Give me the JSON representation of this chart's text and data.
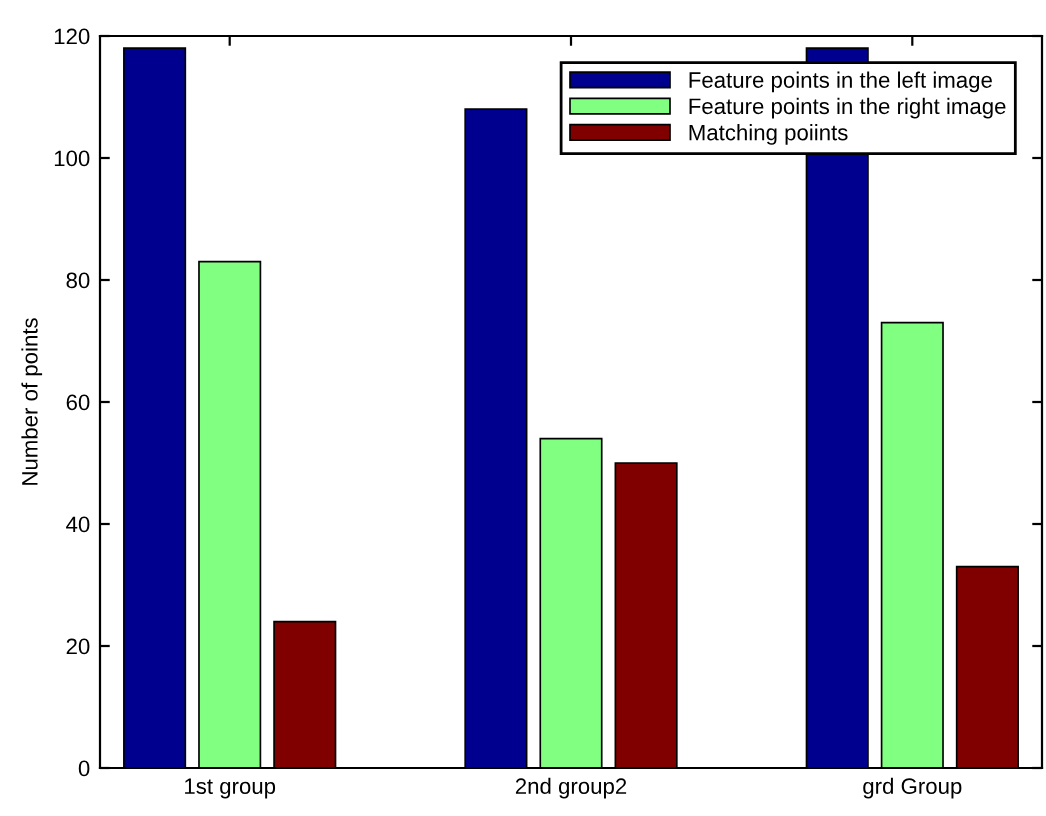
{
  "chart_data": {
    "type": "bar",
    "ylabel": "Number of points",
    "categories": [
      "1st group",
      "2nd group2",
      "grd Group"
    ],
    "series": [
      {
        "name": "Feature points in the left image",
        "color": "#00008f",
        "values": [
          118,
          108,
          118
        ]
      },
      {
        "name": "Feature points in the right image",
        "color": "#80ff80",
        "values": [
          83,
          54,
          73
        ]
      },
      {
        "name": "Matching poiints",
        "color": "#800000",
        "values": [
          24,
          50,
          33
        ]
      }
    ],
    "ylim": [
      0,
      120
    ],
    "yticks": [
      0,
      20,
      40,
      60,
      80,
      100,
      120
    ],
    "grid": false,
    "legend": "top right"
  }
}
